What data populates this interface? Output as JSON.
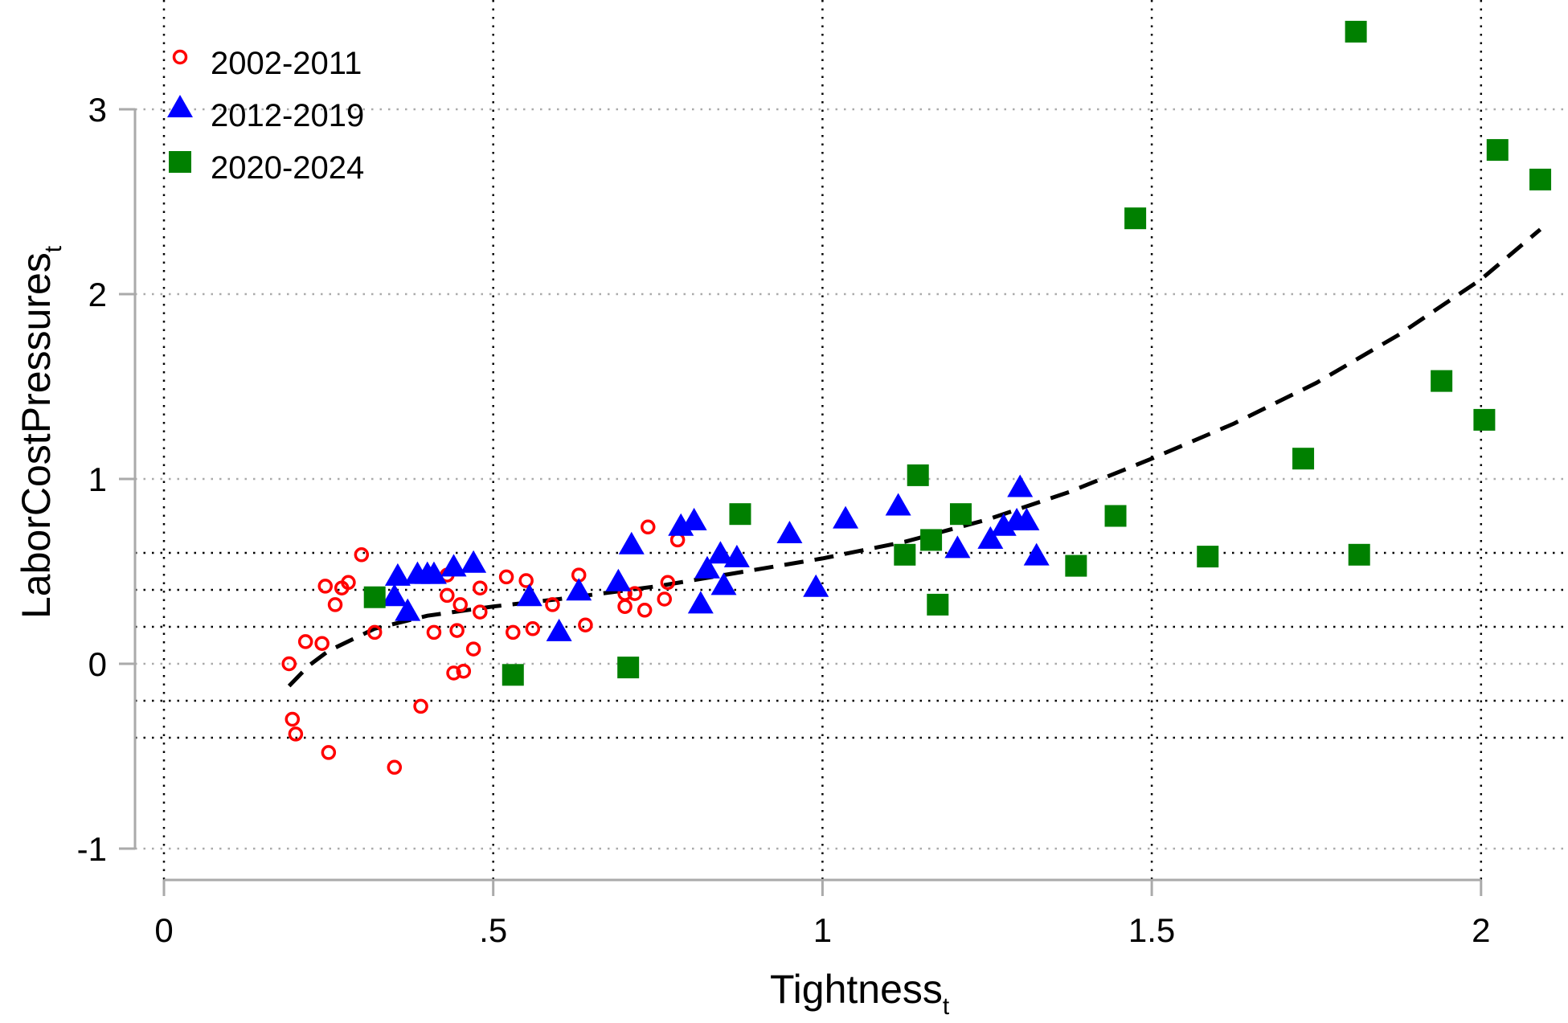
{
  "chart_data": {
    "type": "scatter",
    "title": "",
    "xlabel": "Tightness",
    "xlabel_sub": "t",
    "ylabel": "LaborCostPressures",
    "ylabel_sub": "t",
    "xlim": [
      0,
      2.1
    ],
    "ylim": [
      -1,
      3.5
    ],
    "x_ticks": [
      {
        "v": 0,
        "label": "0"
      },
      {
        "v": 0.5,
        "label": ".5"
      },
      {
        "v": 1,
        "label": "1"
      },
      {
        "v": 1.5,
        "label": "1.5"
      },
      {
        "v": 2,
        "label": "2"
      }
    ],
    "y_ticks": [
      {
        "v": -1,
        "label": "-1"
      },
      {
        "v": 0,
        "label": "0"
      },
      {
        "v": 1,
        "label": "1"
      },
      {
        "v": 2,
        "label": "2"
      },
      {
        "v": 3,
        "label": "3"
      }
    ],
    "extra_hlines": [
      0.6,
      0.4,
      0.2,
      -0.2,
      -0.4
    ],
    "grid": true,
    "legend_position": "top-left",
    "series": [
      {
        "name": "2002-2011",
        "marker": "hollow-circle",
        "color": "#ff0000",
        "x": [
          0.19,
          0.195,
          0.2,
          0.215,
          0.24,
          0.245,
          0.25,
          0.26,
          0.27,
          0.28,
          0.3,
          0.32,
          0.35,
          0.39,
          0.41,
          0.43,
          0.43,
          0.445,
          0.44,
          0.455,
          0.45,
          0.47,
          0.48,
          0.48,
          0.52,
          0.53,
          0.55,
          0.56,
          0.59,
          0.63,
          0.64,
          0.7,
          0.7,
          0.715,
          0.73,
          0.735,
          0.76,
          0.765,
          0.78
        ],
        "y": [
          0.0,
          -0.3,
          -0.38,
          0.12,
          0.11,
          0.42,
          -0.48,
          0.32,
          0.41,
          0.44,
          0.59,
          0.17,
          -0.56,
          -0.23,
          0.17,
          0.37,
          0.48,
          0.18,
          -0.05,
          -0.04,
          0.32,
          0.08,
          0.28,
          0.41,
          0.47,
          0.17,
          0.45,
          0.19,
          0.32,
          0.48,
          0.21,
          0.31,
          0.38,
          0.38,
          0.29,
          0.74,
          0.35,
          0.44,
          0.67
        ]
      },
      {
        "name": "2012-2019",
        "marker": "filled-triangle",
        "color": "#0000ff",
        "x": [
          0.355,
          0.35,
          0.37,
          0.385,
          0.4,
          0.41,
          0.44,
          0.47,
          0.555,
          0.6,
          0.63,
          0.69,
          0.71,
          0.785,
          0.805,
          0.815,
          0.825,
          0.845,
          0.85,
          0.87,
          0.95,
          0.99,
          1.035,
          1.115,
          1.205,
          1.255,
          1.275,
          1.295,
          1.3,
          1.31,
          1.325
        ],
        "y": [
          0.47,
          0.36,
          0.28,
          0.48,
          0.48,
          0.48,
          0.52,
          0.54,
          0.36,
          0.17,
          0.39,
          0.44,
          0.64,
          0.74,
          0.77,
          0.32,
          0.51,
          0.59,
          0.42,
          0.57,
          0.7,
          0.41,
          0.78,
          0.85,
          0.62,
          0.67,
          0.74,
          0.77,
          0.95,
          0.77,
          0.58
        ]
      },
      {
        "name": "2020-2024",
        "marker": "filled-square",
        "color": "#008000",
        "x": [
          0.32,
          0.53,
          0.705,
          0.875,
          1.125,
          1.145,
          1.165,
          1.175,
          1.21,
          1.385,
          1.445,
          1.475,
          1.585,
          1.73,
          1.81,
          1.815,
          1.94,
          2.005,
          2.025,
          2.09
        ],
        "y": [
          0.36,
          -0.06,
          -0.02,
          0.81,
          0.59,
          1.02,
          0.67,
          0.32,
          0.81,
          0.53,
          0.8,
          2.41,
          0.58,
          1.11,
          3.42,
          0.59,
          1.53,
          1.32,
          2.78,
          2.62
        ]
      }
    ],
    "fit_line": {
      "style": "dashed",
      "color": "#000000",
      "x": [
        0.19,
        0.22,
        0.25,
        0.32,
        0.4,
        0.5,
        0.6,
        0.75,
        0.9,
        1.0,
        1.125,
        1.25,
        1.375,
        1.5,
        1.625,
        1.75,
        1.875,
        2.0,
        2.09
      ],
      "y": [
        -0.12,
        -0.01,
        0.07,
        0.19,
        0.26,
        0.31,
        0.35,
        0.42,
        0.51,
        0.57,
        0.66,
        0.78,
        0.93,
        1.11,
        1.3,
        1.52,
        1.78,
        2.08,
        2.35
      ]
    }
  }
}
